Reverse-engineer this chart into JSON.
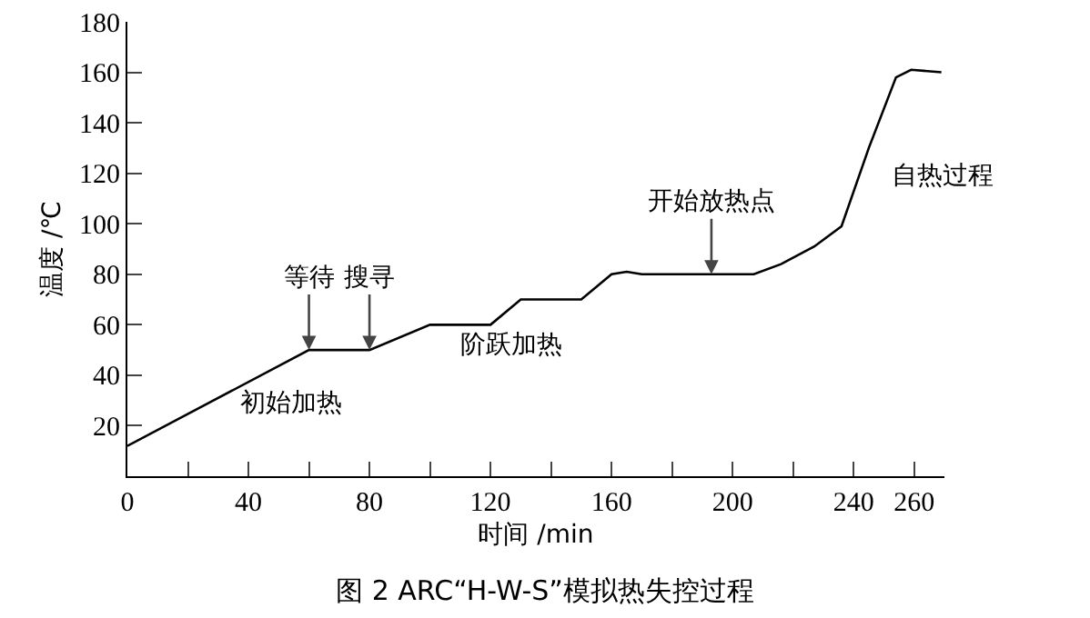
{
  "chart_data": {
    "type": "line",
    "title": "图 2 ARC“H-W-S”模拟热失控过程",
    "xlabel": "时间 /min",
    "ylabel": "温度 /℃",
    "x": [
      0,
      60,
      80,
      100,
      120,
      130,
      150,
      160,
      165,
      170,
      207,
      216,
      227,
      236,
      245,
      254,
      259,
      269
    ],
    "series": [
      {
        "color": "#000000",
        "values": [
          12,
          50,
          50,
          60,
          60,
          70,
          70,
          80,
          81,
          80,
          80,
          84,
          91,
          99,
          130,
          158,
          161,
          160
        ]
      }
    ],
    "xlim": [
      0,
      270
    ],
    "ylim": [
      0,
      180
    ],
    "xticks": [
      0,
      {
        "value": 20,
        "label": null
      },
      40,
      {
        "value": 60,
        "label": null
      },
      80,
      {
        "value": 100,
        "label": null
      },
      120,
      {
        "value": 140,
        "label": null
      },
      160,
      {
        "value": 180,
        "label": null
      },
      200,
      {
        "value": 220,
        "label": null
      },
      240,
      260
    ],
    "yticks": [
      20,
      40,
      60,
      80,
      100,
      120,
      140,
      160,
      180
    ],
    "grid": false,
    "marker": "none",
    "line_style": "solid",
    "annotations": [
      {
        "text": "等待",
        "x": 60,
        "y": 50
      },
      {
        "text": "搜寻",
        "x": 80,
        "y": 50
      },
      {
        "text": "开始放热点",
        "x": 193,
        "y": 80
      },
      "初始加热",
      "阶跃加热",
      "自热过程"
    ]
  }
}
